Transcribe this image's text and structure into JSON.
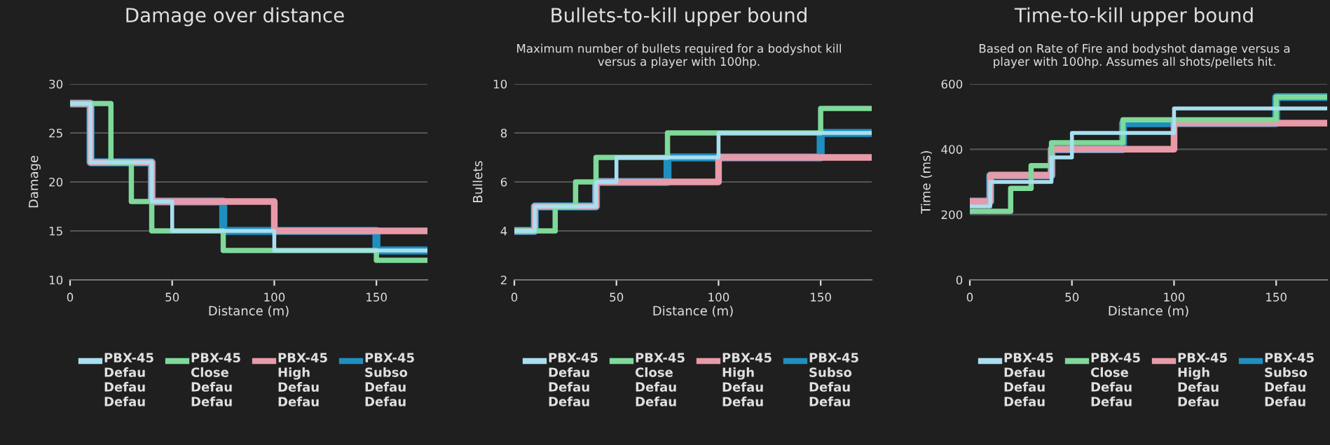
{
  "chart_data": [
    {
      "type": "step",
      "title": "Damage over distance",
      "xlabel": "Distance (m)",
      "ylabel": "Damage",
      "xlim": [
        0,
        175
      ],
      "xticks": [
        0,
        50,
        100,
        150
      ],
      "ylim": [
        10,
        30
      ],
      "yticks": [
        10,
        15,
        20,
        25,
        30
      ],
      "grid": "y",
      "legend": "bottom",
      "series": [
        {
          "name": "PBX-45\nDefau\nDefau\nDefau",
          "color": "#a8dff0",
          "x": [
            0,
            10,
            40,
            50,
            100,
            175
          ],
          "values": [
            28,
            22,
            18,
            15,
            13,
            13
          ]
        },
        {
          "name": "PBX-45\nClose\nDefau\nDefau",
          "color": "#7fd99a",
          "x": [
            0,
            20,
            30,
            40,
            75,
            150,
            175
          ],
          "values": [
            28,
            22,
            18,
            15,
            13,
            12,
            12
          ]
        },
        {
          "name": "PBX-45\nHigh\nDefau\nDefau",
          "color": "#e89aa8",
          "x": [
            0,
            10,
            40,
            100,
            175
          ],
          "values": [
            28,
            22,
            18,
            15,
            15
          ]
        },
        {
          "name": "PBX-45\nSubso\nDefau\nDefau",
          "color": "#1f8fc0",
          "x": [
            0,
            10,
            40,
            75,
            150,
            175
          ],
          "values": [
            28,
            22,
            18,
            15,
            13,
            13
          ]
        }
      ]
    },
    {
      "type": "step",
      "title": "Bullets-to-kill upper bound",
      "subtitle": "Maximum number of bullets required for a bodyshot kill versus a player with 100hp.",
      "xlabel": "Distance (m)",
      "ylabel": "Bullets",
      "xlim": [
        0,
        175
      ],
      "xticks": [
        0,
        50,
        100,
        150
      ],
      "ylim": [
        2,
        10
      ],
      "yticks": [
        2,
        4,
        6,
        8,
        10
      ],
      "grid": "y",
      "legend": "bottom",
      "series": [
        {
          "name": "PBX-45\nDefau\nDefau\nDefau",
          "color": "#a8dff0",
          "x": [
            0,
            10,
            40,
            50,
            100,
            175
          ],
          "values": [
            4,
            5,
            6,
            7,
            8,
            8
          ]
        },
        {
          "name": "PBX-45\nClose\nDefau\nDefau",
          "color": "#7fd99a",
          "x": [
            0,
            20,
            30,
            40,
            75,
            150,
            175
          ],
          "values": [
            4,
            5,
            6,
            7,
            8,
            9,
            9
          ]
        },
        {
          "name": "PBX-45\nHigh\nDefau\nDefau",
          "color": "#e89aa8",
          "x": [
            0,
            10,
            40,
            100,
            175
          ],
          "values": [
            4,
            5,
            6,
            7,
            7
          ]
        },
        {
          "name": "PBX-45\nSubso\nDefau\nDefau",
          "color": "#1f8fc0",
          "x": [
            0,
            10,
            40,
            75,
            150,
            175
          ],
          "values": [
            4,
            5,
            6,
            7,
            8,
            8
          ]
        }
      ]
    },
    {
      "type": "step",
      "title": "Time-to-kill upper bound",
      "subtitle": "Based on Rate of Fire and bodyshot damage versus a player with 100hp. Assumes all shots/pellets hit.",
      "xlabel": "Distance (m)",
      "ylabel": "Time (ms)",
      "xlim": [
        0,
        175
      ],
      "xticks": [
        0,
        50,
        100,
        150
      ],
      "ylim": [
        0,
        600
      ],
      "yticks": [
        0,
        200,
        400,
        600
      ],
      "grid": "y",
      "legend": "bottom",
      "series": [
        {
          "name": "PBX-45\nDefau\nDefau\nDefau",
          "color": "#a8dff0",
          "x": [
            0,
            10,
            40,
            50,
            100,
            175
          ],
          "values": [
            225,
            300,
            375,
            450,
            525,
            525
          ]
        },
        {
          "name": "PBX-45\nClose\nDefau\nDefau",
          "color": "#7fd99a",
          "x": [
            0,
            20,
            30,
            40,
            75,
            150,
            175
          ],
          "values": [
            210,
            280,
            350,
            420,
            490,
            560,
            560
          ]
        },
        {
          "name": "PBX-45\nHigh\nDefau\nDefau",
          "color": "#e89aa8",
          "x": [
            0,
            10,
            40,
            100,
            175
          ],
          "values": [
            240,
            320,
            400,
            480,
            480
          ]
        },
        {
          "name": "PBX-45\nSubso\nDefau\nDefau",
          "color": "#1f8fc0",
          "x": [
            0,
            10,
            40,
            75,
            150,
            175
          ],
          "values": [
            240,
            320,
            400,
            480,
            560,
            560
          ]
        }
      ]
    }
  ]
}
